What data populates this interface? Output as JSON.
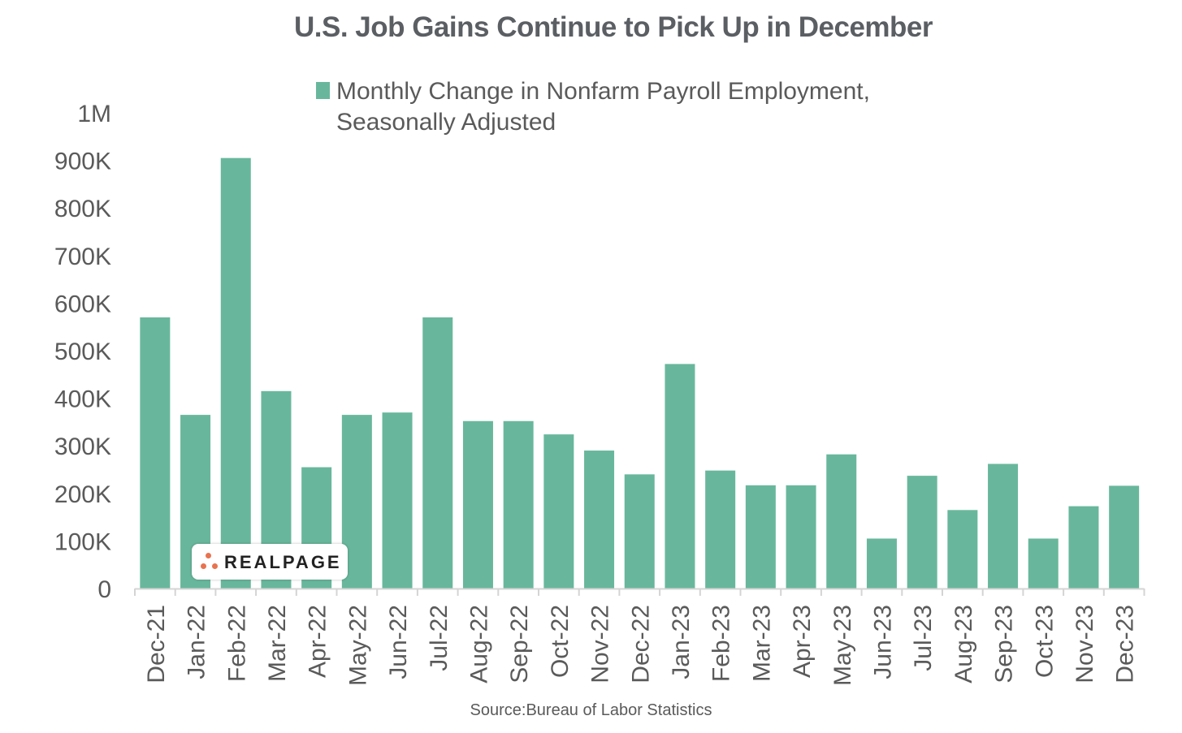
{
  "chart_data": {
    "type": "bar",
    "title": "U.S. Job Gains Continue to Pick Up in December",
    "series": [
      {
        "name": "Monthly Change in Nonfarm Payroll Employment, Seasonally Adjusted",
        "legend_lines": [
          "Monthly Change in Nonfarm Payroll Employment,",
          "Seasonally Adjusted"
        ],
        "color": "#68b79c",
        "values": [
          570000,
          365000,
          905000,
          415000,
          255000,
          365000,
          370000,
          570000,
          352000,
          352000,
          324000,
          290000,
          240000,
          472000,
          248000,
          217000,
          217000,
          282000,
          105000,
          237000,
          165000,
          262000,
          105000,
          173000,
          216000
        ]
      }
    ],
    "categories": [
      "Dec-21",
      "Jan-22",
      "Feb-22",
      "Mar-22",
      "Apr-22",
      "May-22",
      "Jun-22",
      "Jul-22",
      "Aug-22",
      "Sep-22",
      "Oct-22",
      "Nov-22",
      "Dec-22",
      "Jan-23",
      "Feb-23",
      "Mar-23",
      "Apr-23",
      "May-23",
      "Jun-23",
      "Jul-23",
      "Aug-23",
      "Sep-23",
      "Oct-23",
      "Nov-23",
      "Dec-23"
    ],
    "ylim": [
      0,
      1000000
    ],
    "yticks": [
      {
        "value": 0,
        "label": "0"
      },
      {
        "value": 100000,
        "label": "100K"
      },
      {
        "value": 200000,
        "label": "200K"
      },
      {
        "value": 300000,
        "label": "300K"
      },
      {
        "value": 400000,
        "label": "400K"
      },
      {
        "value": 500000,
        "label": "500K"
      },
      {
        "value": 600000,
        "label": "600K"
      },
      {
        "value": 700000,
        "label": "700K"
      },
      {
        "value": 800000,
        "label": "800K"
      },
      {
        "value": 900000,
        "label": "900K"
      },
      {
        "value": 1000000,
        "label": "1M"
      }
    ],
    "grid": false,
    "legend_position": "top"
  },
  "source": "Source:Bureau of Labor Statistics",
  "logo": {
    "text": "REALPAGE",
    "color": "#e8734f"
  }
}
